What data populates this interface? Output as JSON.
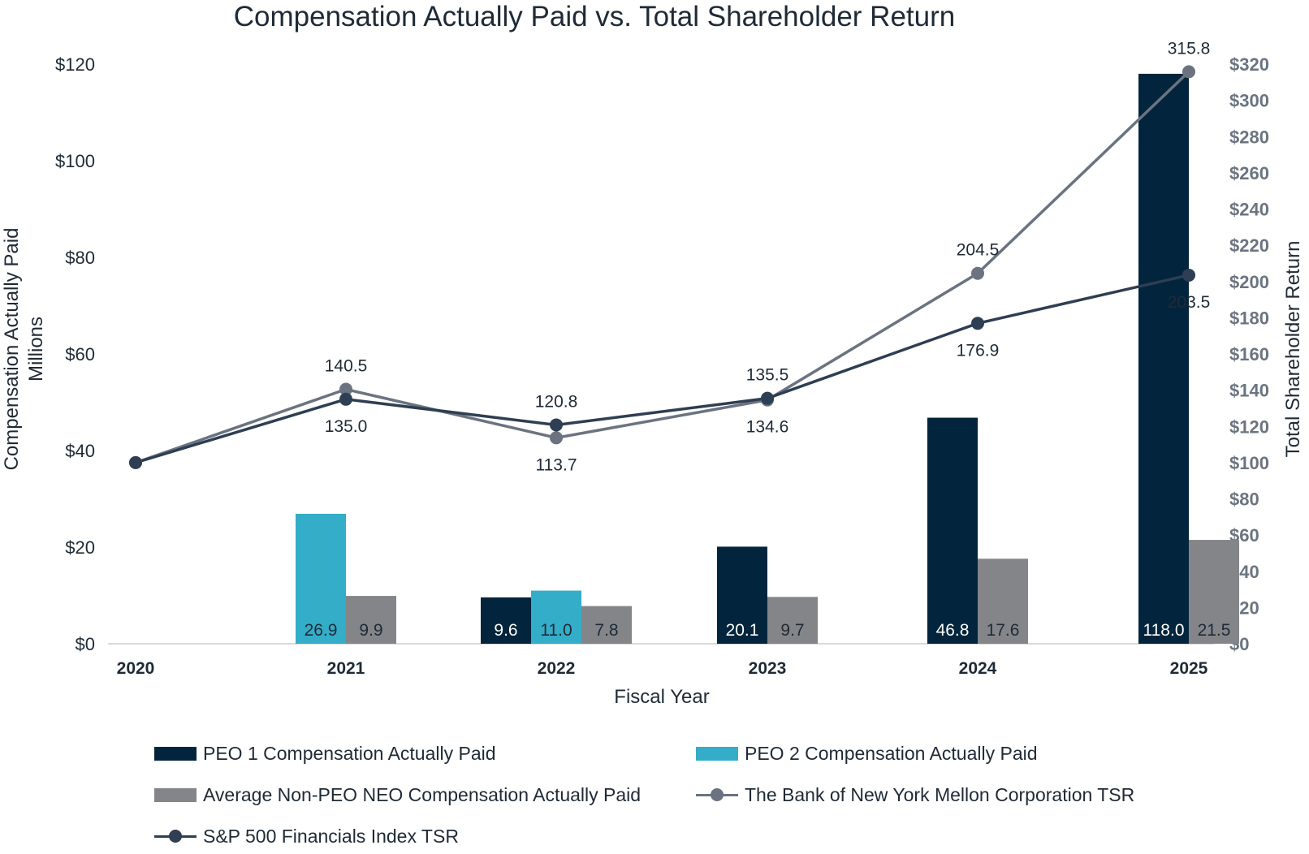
{
  "chart_data": {
    "type": "bar",
    "title": "Compensation Actually Paid vs. Total Shareholder Return",
    "xlabel": "Fiscal Year",
    "ylabel": "Compensation Actually Paid",
    "ylabel_sub": "Millions",
    "y2label": "Total Shareholder Return",
    "categories": [
      "2020",
      "2021",
      "2022",
      "2023",
      "2024",
      "2025"
    ],
    "ylim": [
      0,
      120
    ],
    "y_ticks": [
      "$0",
      "$20",
      "$40",
      "$60",
      "$80",
      "$100",
      "$120"
    ],
    "y2lim": [
      0,
      320
    ],
    "y2_ticks": [
      "$0",
      "$20",
      "$40",
      "$60",
      "$80",
      "$100",
      "$120",
      "$140",
      "$160",
      "$180",
      "$200",
      "$220",
      "$240",
      "$260",
      "$280",
      "$300",
      "$320"
    ],
    "series": [
      {
        "name": "PEO 1 Compensation Actually Paid",
        "kind": "bar",
        "color": "#02253d",
        "values": [
          null,
          null,
          9.6,
          20.1,
          46.8,
          118.0
        ],
        "labels": [
          "",
          "",
          "9.6",
          "20.1",
          "46.8",
          "118.0"
        ]
      },
      {
        "name": "PEO 2 Compensation Actually Paid",
        "kind": "bar",
        "color": "#33adc8",
        "values": [
          null,
          26.9,
          11.0,
          null,
          null,
          null
        ],
        "labels": [
          "",
          "26.9",
          "11.0",
          "",
          "",
          ""
        ]
      },
      {
        "name": "Average Non-PEO NEO Compensation Actually Paid",
        "kind": "bar",
        "color": "#838589",
        "values": [
          null,
          9.9,
          7.8,
          9.7,
          17.6,
          21.5
        ],
        "labels": [
          "",
          "9.9",
          "7.8",
          "9.7",
          "17.6",
          "21.5"
        ]
      },
      {
        "name": "The Bank of New York Mellon Corporation TSR",
        "kind": "line",
        "axis": "right",
        "color": "#6b7381",
        "values": [
          100,
          140.5,
          113.7,
          134.6,
          204.5,
          315.8
        ],
        "labels": [
          "",
          "140.5",
          "113.7",
          "134.6",
          "204.5",
          "315.8"
        ]
      },
      {
        "name": "S&P 500 Financials Index TSR",
        "kind": "line",
        "axis": "right",
        "color": "#2e3e53",
        "values": [
          100,
          135.0,
          120.8,
          135.5,
          176.9,
          203.5
        ],
        "labels": [
          "",
          "135.0",
          "120.8",
          "135.5",
          "176.9",
          "203.5"
        ]
      }
    ],
    "legend_position": "bottom"
  }
}
